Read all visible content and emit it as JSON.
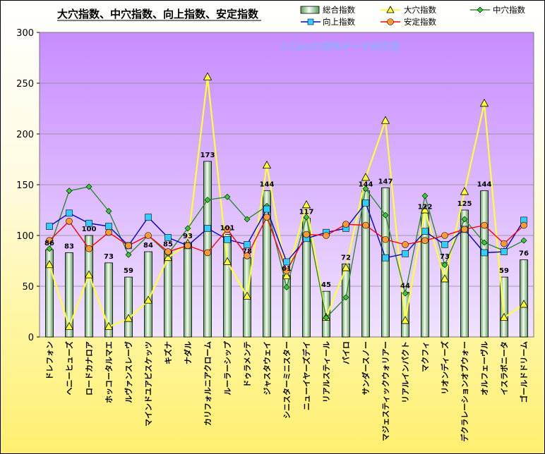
{
  "chart_data": {
    "type": "bar",
    "title": "大穴指数、中穴指数、向上指数、安定指数",
    "watermark": "©Caniの競馬データ研究室",
    "ylim": [
      0,
      300
    ],
    "yticks": [
      "0",
      "50",
      "100",
      "150",
      "200",
      "250",
      "300"
    ],
    "grid": true,
    "legend_position": "top-right",
    "categories": [
      "ドレフォン",
      "ヘニーヒューズ",
      "ロードカナロア",
      "ホッコータルマエ",
      "ルヴァンスレーヴ",
      "マインドユアビスケッツ",
      "キズナ",
      "ナダル",
      "カリフォルニアクローム",
      "ルーラーシップ",
      "ドゥラメンテ",
      "ジャスタウェイ",
      "シニスターミニスター",
      "ニューイヤーズデイ",
      "リアルスティール",
      "パイロ",
      "サンダースノー",
      "マジェスティックウォリアー",
      "リアルインパクト",
      "マクフィ",
      "リオンディーズ",
      "デクラレーションオブウォー",
      "オルフェーヴル",
      "イスラボニータ",
      "ゴールドドリーム"
    ],
    "bar_series": {
      "name": "総合指数",
      "values": [
        86,
        83,
        100,
        73,
        59,
        84,
        85,
        93,
        173,
        101,
        78,
        144,
        61,
        117,
        45,
        72,
        144,
        147,
        44,
        122,
        73,
        125,
        144,
        59,
        76
      ],
      "labels": [
        "86",
        "83",
        "100",
        "73",
        "59",
        "84",
        "85",
        "93",
        "173",
        "101",
        "78",
        "144",
        "61",
        "117",
        "45",
        "72",
        "144",
        "147",
        "44",
        "122",
        "73",
        "125",
        "144",
        "59",
        "76"
      ]
    },
    "line_series": [
      {
        "name": "大穴指数",
        "color": "#ffff33",
        "marker": "triangle",
        "values": [
          71,
          10,
          61,
          10,
          18,
          36,
          78,
          92,
          256,
          74,
          40,
          169,
          60,
          130,
          19,
          68,
          157,
          213,
          16,
          125,
          57,
          143,
          230,
          19,
          32
        ]
      },
      {
        "name": "中穴指数",
        "color": "#2d8a2d",
        "marker": "diamond",
        "values": [
          87,
          144,
          148,
          124,
          81,
          100,
          82,
          107,
          135,
          138,
          116,
          129,
          49,
          118,
          19,
          39,
          146,
          120,
          43,
          139,
          71,
          116,
          93,
          85,
          95
        ]
      },
      {
        "name": "向上指数",
        "color": "#0000cc",
        "marker": "square",
        "values": [
          109,
          122,
          112,
          109,
          90,
          118,
          98,
          90,
          107,
          96,
          91,
          126,
          74,
          97,
          103,
          107,
          132,
          78,
          82,
          104,
          91,
          106,
          83,
          84,
          115
        ]
      },
      {
        "name": "安定指数",
        "color": "#ff0000",
        "marker": "circle",
        "values": [
          95,
          114,
          87,
          103,
          90,
          100,
          84,
          90,
          83,
          106,
          80,
          118,
          65,
          101,
          100,
          111,
          110,
          96,
          91,
          95,
          100,
          106,
          110,
          92,
          110
        ]
      }
    ]
  }
}
